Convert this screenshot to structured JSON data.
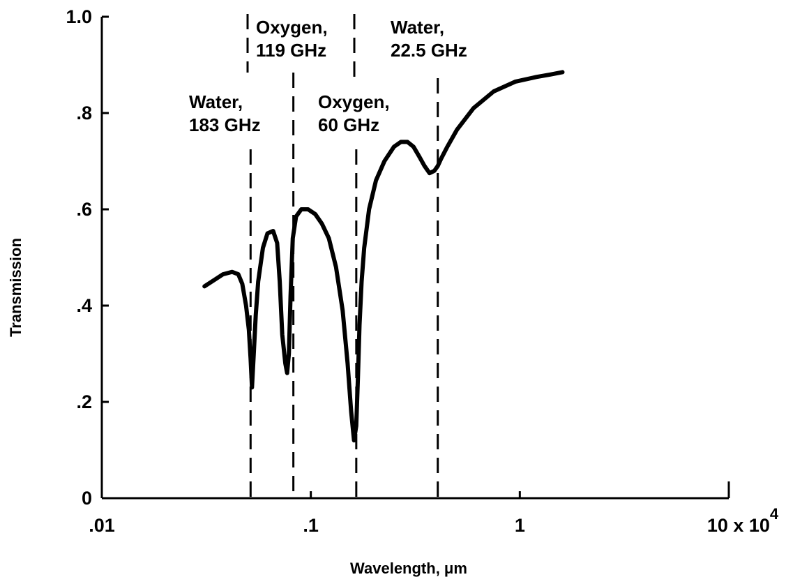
{
  "chart_data": {
    "type": "line",
    "title": "",
    "xlabel": "Wavelength, μm",
    "ylabel": "Transmission",
    "x_scale": "log",
    "xlim": [
      0.01,
      10
    ],
    "ylim": [
      0,
      1.0
    ],
    "grid": false,
    "x_ticks": [
      {
        "value": 0.01,
        "label": ".01"
      },
      {
        "value": 0.1,
        "label": ".1"
      },
      {
        "value": 1,
        "label": "1"
      },
      {
        "value": 10,
        "label": "10 x 10",
        "exponent": "4"
      }
    ],
    "y_ticks": [
      {
        "value": 0,
        "label": "0"
      },
      {
        "value": 0.2,
        "label": ".2"
      },
      {
        "value": 0.4,
        "label": ".4"
      },
      {
        "value": 0.6,
        "label": ".6"
      },
      {
        "value": 0.8,
        "label": ".8"
      },
      {
        "value": 1.0,
        "label": "1.0"
      }
    ],
    "series": [
      {
        "x": [
          0.031,
          0.035,
          0.038,
          0.042,
          0.045,
          0.047,
          0.049,
          0.0505,
          0.0515,
          0.0523,
          0.0532,
          0.0545,
          0.056,
          0.059,
          0.062,
          0.066,
          0.069,
          0.071,
          0.073,
          0.0755,
          0.077,
          0.0785,
          0.08,
          0.082,
          0.085,
          0.09,
          0.097,
          0.105,
          0.113,
          0.122,
          0.132,
          0.142,
          0.15,
          0.156,
          0.161,
          0.165,
          0.168,
          0.171,
          0.175,
          0.18,
          0.19,
          0.205,
          0.225,
          0.25,
          0.27,
          0.29,
          0.31,
          0.33,
          0.35,
          0.37,
          0.39,
          0.405,
          0.42,
          0.45,
          0.5,
          0.6,
          0.75,
          0.95,
          1.2,
          1.4,
          1.6
        ],
        "y": [
          0.44,
          0.455,
          0.465,
          0.47,
          0.465,
          0.445,
          0.4,
          0.35,
          0.29,
          0.23,
          0.29,
          0.38,
          0.45,
          0.52,
          0.55,
          0.555,
          0.53,
          0.45,
          0.34,
          0.28,
          0.26,
          0.3,
          0.42,
          0.54,
          0.585,
          0.6,
          0.6,
          0.59,
          0.57,
          0.54,
          0.48,
          0.39,
          0.28,
          0.18,
          0.12,
          0.15,
          0.25,
          0.36,
          0.45,
          0.52,
          0.6,
          0.66,
          0.7,
          0.73,
          0.74,
          0.74,
          0.73,
          0.71,
          0.69,
          0.675,
          0.68,
          0.69,
          0.705,
          0.73,
          0.765,
          0.81,
          0.845,
          0.865,
          0.875,
          0.88,
          0.885
        ]
      }
    ],
    "annotations": [
      {
        "x": 0.0515,
        "lines": [
          "Water,",
          "183 GHz"
        ]
      },
      {
        "x": 0.0825,
        "lines": [
          "Oxygen,",
          "119 GHz"
        ]
      },
      {
        "x": 0.165,
        "lines": [
          "Oxygen,",
          "60 GHz"
        ]
      },
      {
        "x": 0.405,
        "lines": [
          "Water,",
          "22.5 GHz"
        ]
      }
    ]
  }
}
